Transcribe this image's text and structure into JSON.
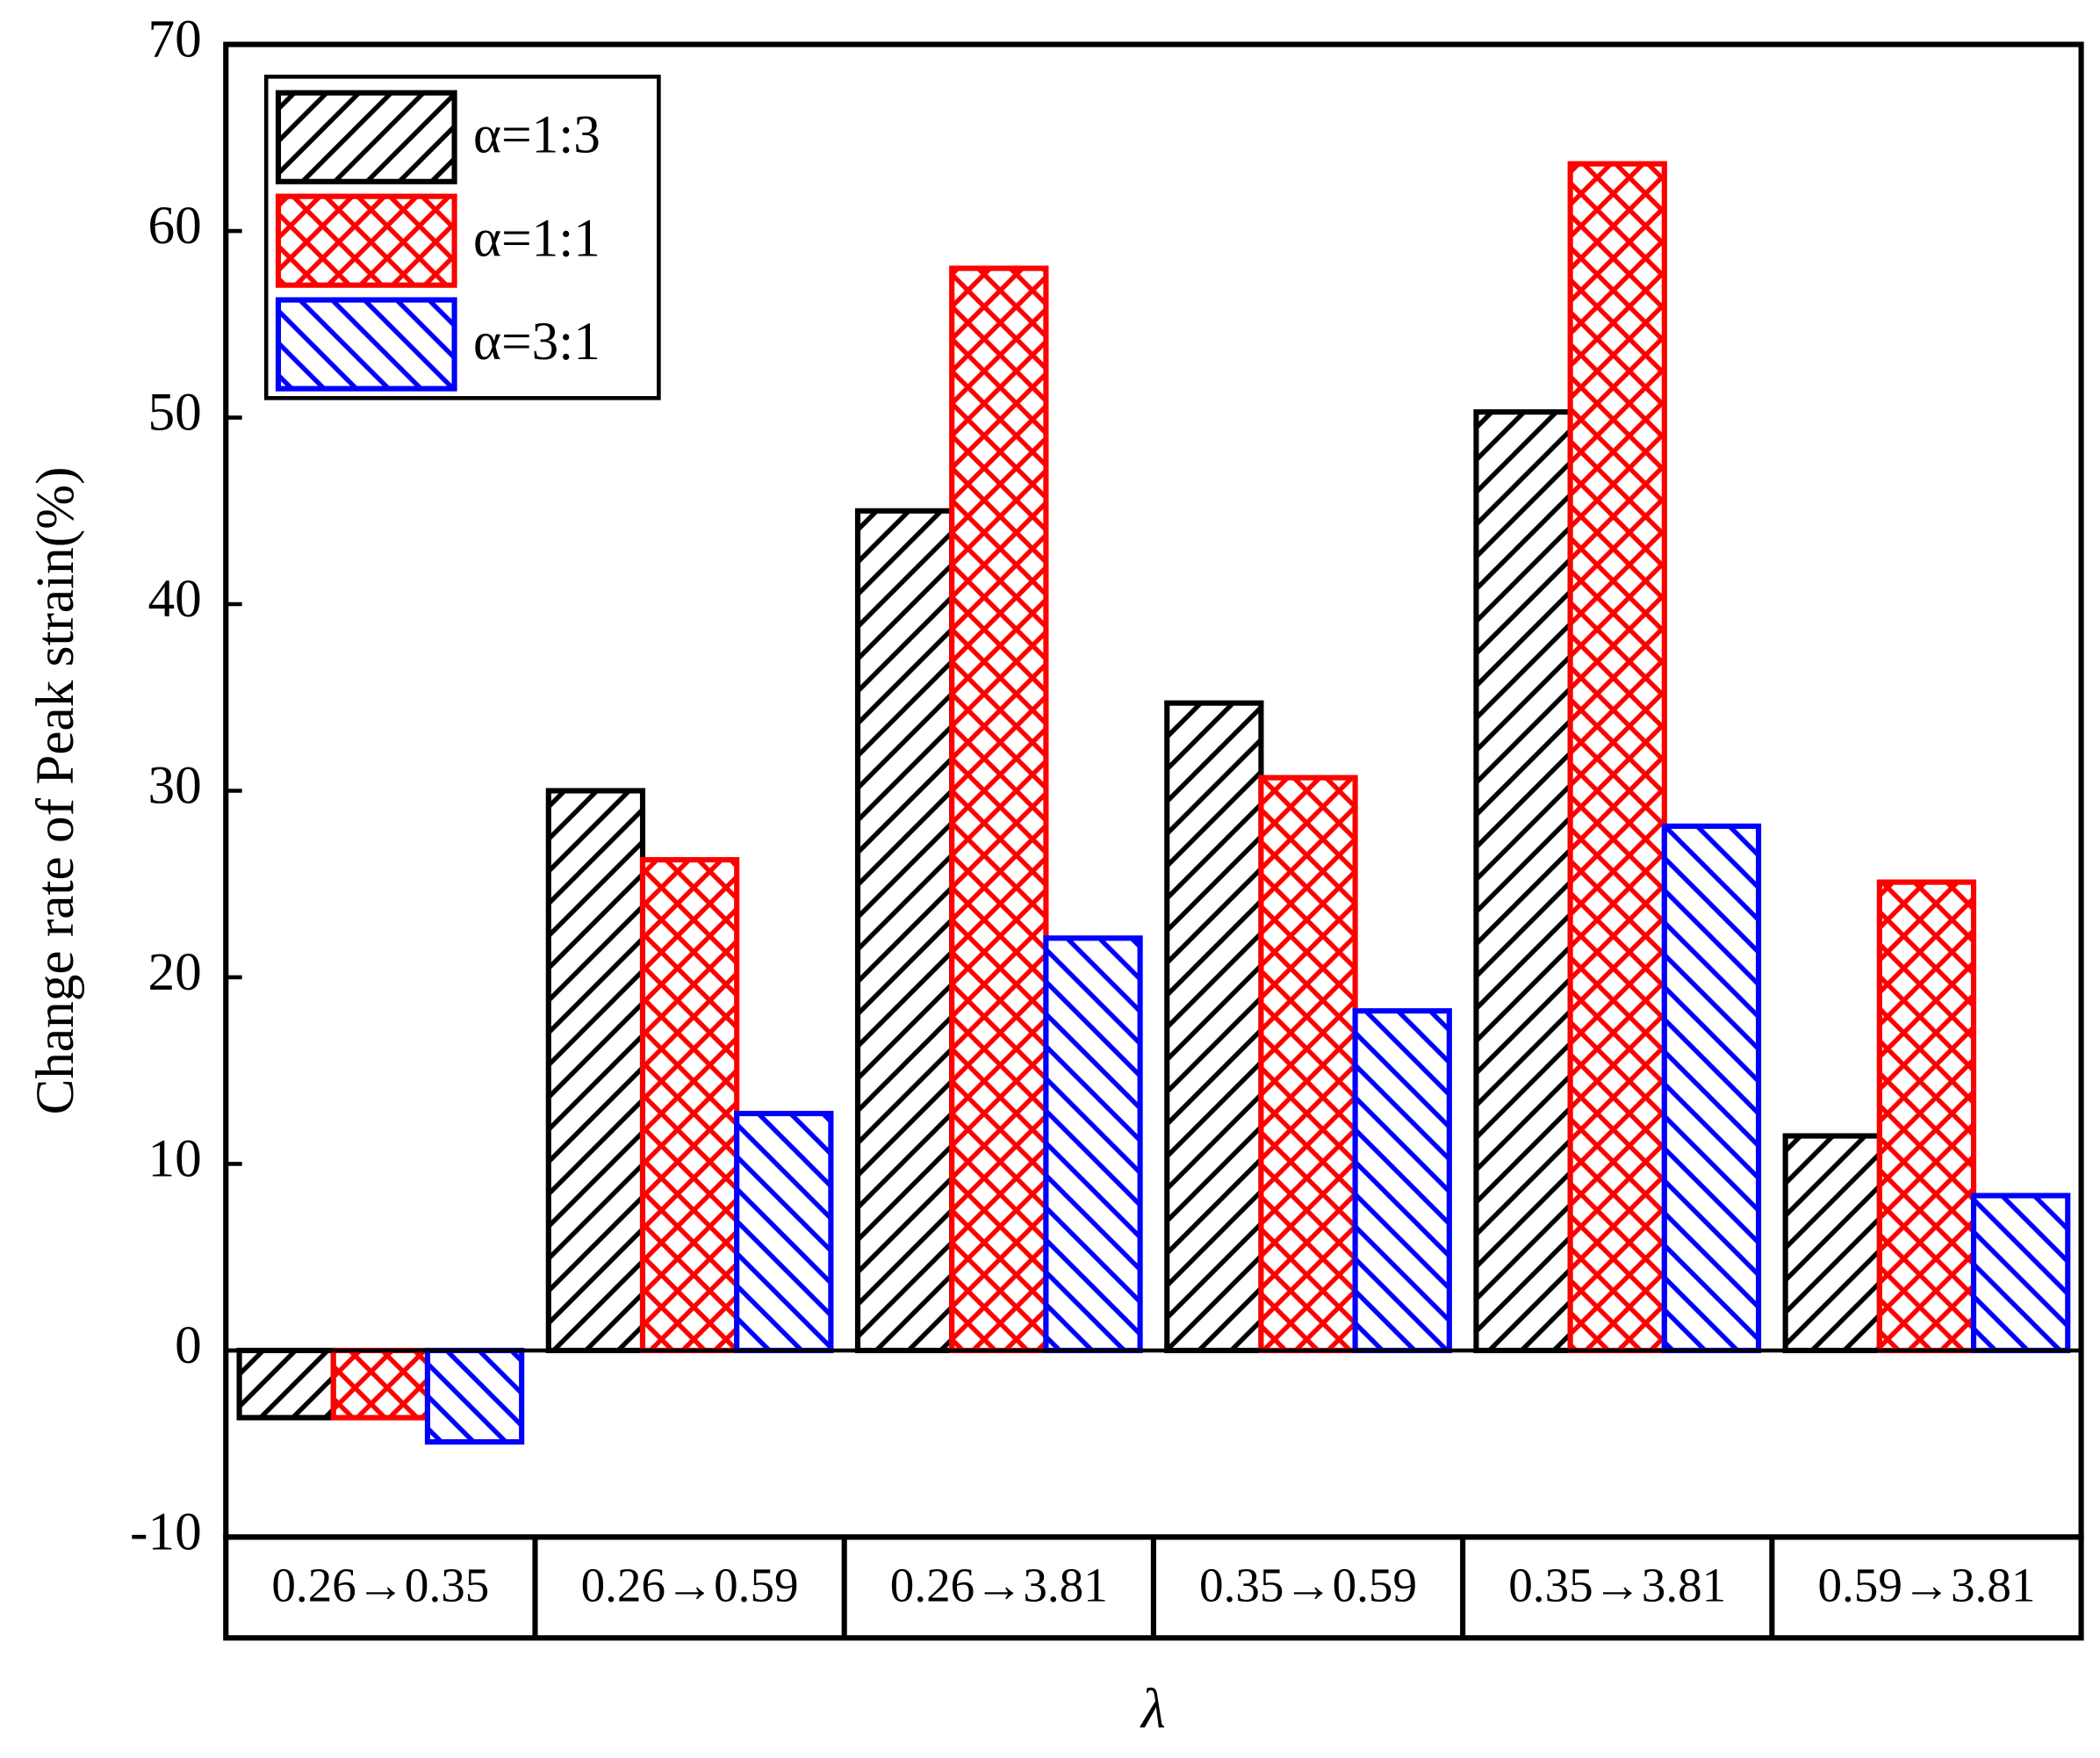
{
  "chart_data": {
    "type": "bar",
    "y_label": "Change rate of Peak strain(%)",
    "x_label": "λ",
    "categories": [
      "0.26→0.35",
      "0.26→0.59",
      "0.26→3.81",
      "0.35→0.59",
      "0.35→3.81",
      "0.59→3.81"
    ],
    "series": [
      {
        "name": "α=1:3",
        "color": "#000000",
        "hatch": "diagonal",
        "values": [
          -3.6,
          30.0,
          45.0,
          34.7,
          50.3,
          11.5
        ]
      },
      {
        "name": "α=1:1",
        "color": "#ff0000",
        "hatch": "cross",
        "values": [
          -3.6,
          26.3,
          58.0,
          30.7,
          63.6,
          25.1
        ]
      },
      {
        "name": "α=3:1",
        "color": "#0000ff",
        "hatch": "back-diagonal",
        "values": [
          -4.9,
          12.7,
          22.1,
          18.2,
          28.1,
          8.3
        ]
      }
    ],
    "ylim": [
      -10,
      70
    ],
    "yticks": [
      -10,
      0,
      10,
      20,
      30,
      40,
      50,
      60,
      70
    ],
    "legend": "upper left"
  }
}
